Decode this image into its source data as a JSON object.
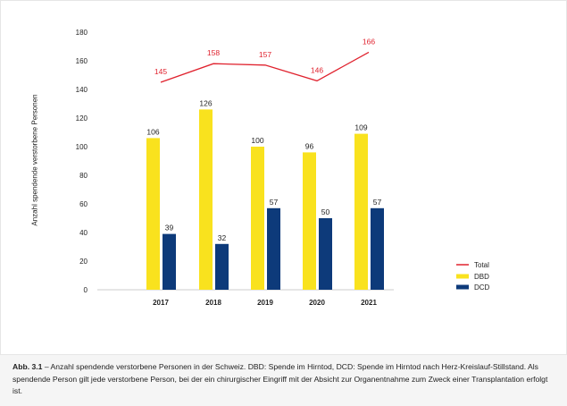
{
  "chart_data": {
    "type": "bar",
    "categories": [
      "2017",
      "2018",
      "2019",
      "2020",
      "2021"
    ],
    "series": [
      {
        "name": "DBD",
        "values": [
          106,
          126,
          100,
          96,
          109
        ],
        "color": "#f9e21e"
      },
      {
        "name": "DCD",
        "values": [
          39,
          32,
          57,
          50,
          57
        ],
        "color": "#0d3a7a"
      }
    ],
    "line_series": {
      "name": "Total",
      "values": [
        145,
        158,
        157,
        146,
        166
      ],
      "color": "#e0222e"
    },
    "ylabel": "Anzahl spendende verstorbene Personen",
    "xlabel": "",
    "ylim": [
      0,
      180
    ],
    "yticks": [
      0,
      20,
      40,
      60,
      80,
      100,
      120,
      140,
      160,
      180
    ],
    "legend": [
      "Total",
      "DBD",
      "DCD"
    ],
    "legend_position": "right"
  },
  "caption": {
    "label": "Abb. 3.1",
    "text": " – Anzahl spendende verstorbene Personen in der Schweiz. DBD: Spende im Hirntod, DCD: Spende im Hirntod nach Herz-Kreislauf-Stillstand. Als spendende Person gilt jede verstorbene Person, bei der ein chirurgischer Eingriff mit der Absicht zur Organentnahme zum Zweck einer Transplantation erfolgt ist."
  }
}
